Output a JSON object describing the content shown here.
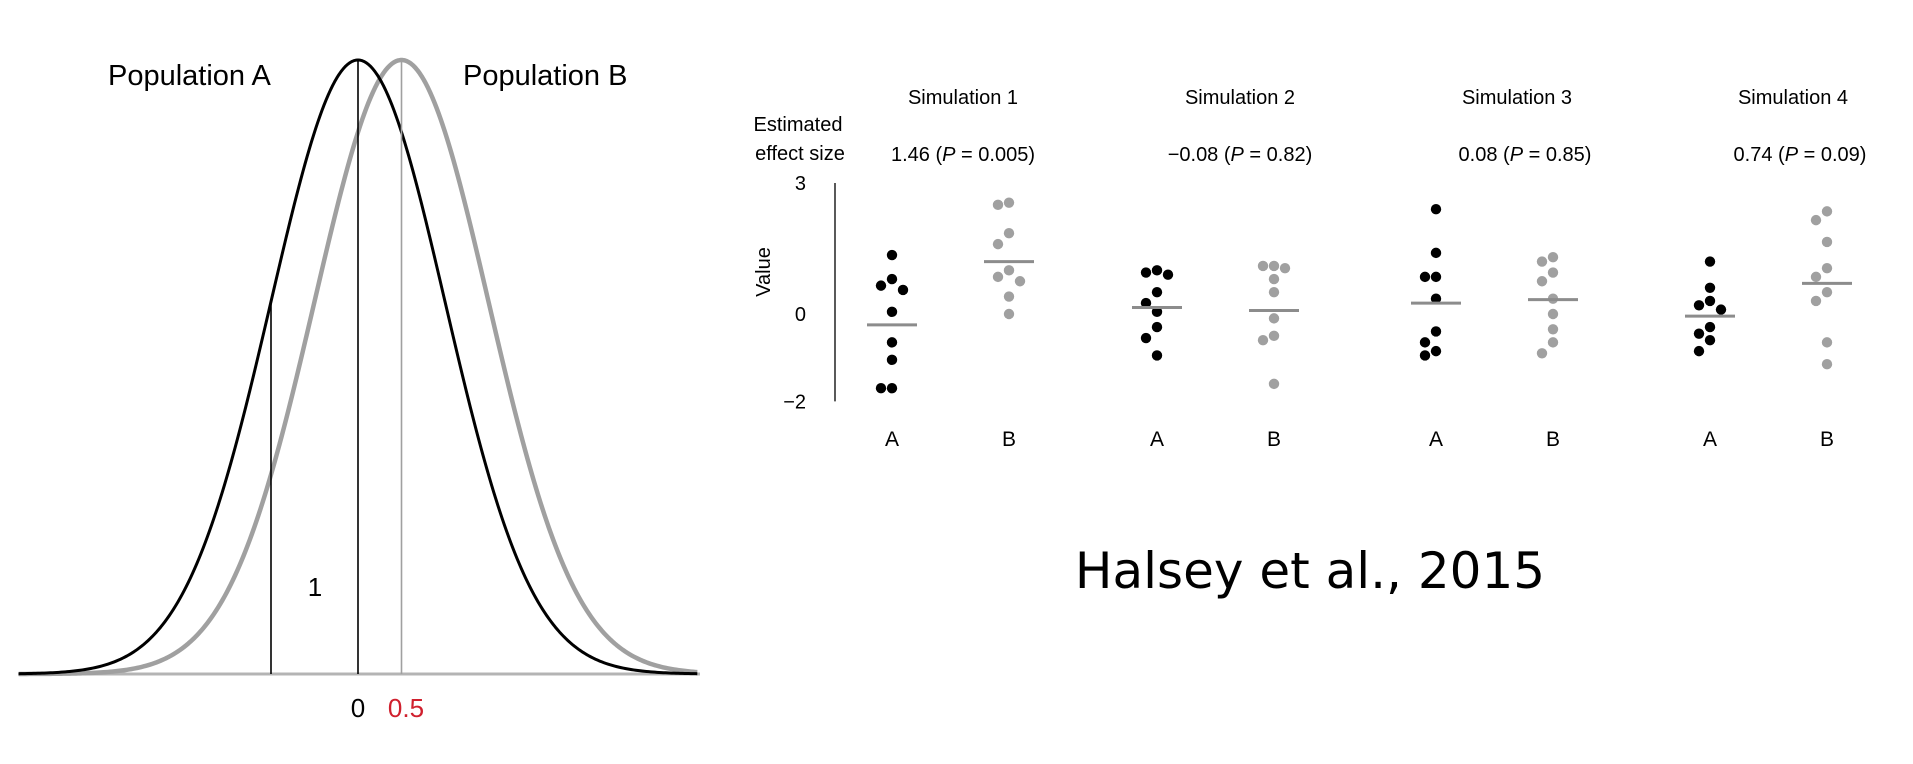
{
  "colors": {
    "population_a": "#000000",
    "population_b": "#a0a0a0",
    "highlight_value": "#d0202e",
    "axis": "#000000"
  },
  "chart_data": [
    {
      "type": "line",
      "chart": "normal-distributions",
      "series": [
        {
          "name": "Population A",
          "mean": 0,
          "sd": 1,
          "color": "#000000"
        },
        {
          "name": "Population B",
          "mean": 0.5,
          "sd": 1,
          "color": "#a0a0a0"
        }
      ],
      "x_range": [
        -3.9,
        3.9
      ],
      "annotations": {
        "sd_label": "1",
        "tick_zero": "0",
        "tick_mean_b": "0.5"
      }
    },
    {
      "type": "scatter",
      "chart": "simulations",
      "ylabel": "Value",
      "ylim": [
        -2,
        3
      ],
      "yticks": [
        "3",
        "0",
        "−2"
      ],
      "row_label_line1": "Estimated",
      "row_label_line2": "effect size",
      "groups": [
        "A",
        "B"
      ],
      "simulations": [
        {
          "title": "Simulation 1",
          "effect": "1.46",
          "p": "0.005",
          "A": {
            "mean": -0.25,
            "points": [
              1.35,
              0.8,
              0.65,
              0.55,
              0.05,
              -0.65,
              -1.05,
              -1.7,
              -1.7
            ]
          },
          "B": {
            "mean": 1.2,
            "points": [
              2.55,
              2.5,
              1.85,
              1.6,
              1.0,
              0.85,
              0.75,
              0.4,
              0.0
            ]
          }
        },
        {
          "title": "Simulation 2",
          "effect": "−0.08",
          "p": "0.82",
          "A": {
            "mean": 0.15,
            "points": [
              1.0,
              0.95,
              0.9,
              0.5,
              0.25,
              0.05,
              -0.3,
              -0.55,
              -0.95
            ]
          },
          "B": {
            "mean": 0.08,
            "points": [
              1.1,
              1.1,
              1.05,
              0.8,
              0.5,
              -0.1,
              -0.5,
              -0.6,
              -1.6
            ]
          }
        },
        {
          "title": "Simulation 3",
          "effect": "0.08",
          "p": "0.85",
          "A": {
            "mean": 0.25,
            "points": [
              2.4,
              1.4,
              0.85,
              0.85,
              0.35,
              -0.4,
              -0.65,
              -0.85,
              -0.95
            ]
          },
          "B": {
            "mean": 0.33,
            "points": [
              1.3,
              1.2,
              0.95,
              0.75,
              0.35,
              0.0,
              -0.35,
              -0.65,
              -0.9
            ]
          }
        },
        {
          "title": "Simulation 4",
          "effect": "0.74",
          "p": "0.09",
          "A": {
            "mean": -0.05,
            "points": [
              1.2,
              0.6,
              0.3,
              0.2,
              0.1,
              -0.3,
              -0.45,
              -0.6,
              -0.85
            ]
          },
          "B": {
            "mean": 0.7,
            "points": [
              2.35,
              2.15,
              1.65,
              1.05,
              0.85,
              0.5,
              0.3,
              -0.65,
              -1.15
            ]
          }
        }
      ]
    }
  ],
  "credit": "Halsey et al., 2015"
}
